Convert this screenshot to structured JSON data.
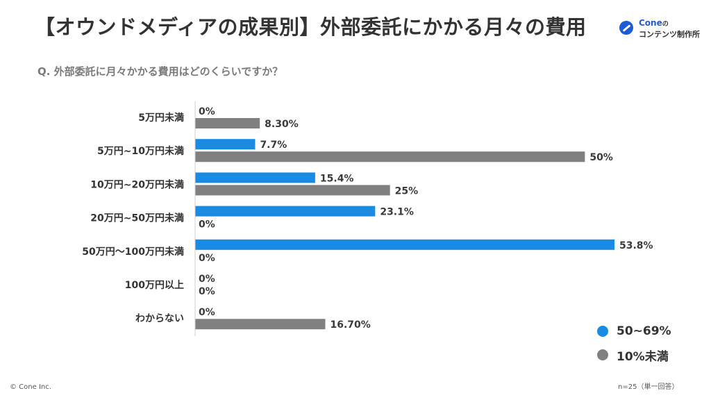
{
  "title": "【オウンドメディアの成果別】外部委託にかかる月々の費用",
  "logo": {
    "brand": "Cone",
    "particle": "の",
    "sub": "コンテンツ制作所"
  },
  "question": "Q. 外部委託に月々かかる費用はどのくらいですか？",
  "footer": {
    "copyright": "© Cone Inc.",
    "note": "n=25（単一回答）"
  },
  "chart_data": {
    "type": "bar",
    "orientation": "horizontal",
    "categories": [
      "5万円未満",
      "5万円~10万円未満",
      "10万円~20万円未満",
      "20万円~50万円未満",
      "50万円〜100万円未満",
      "100万円以上",
      "わからない"
    ],
    "series": [
      {
        "name": "50~69%",
        "color": "#1a8be3",
        "values": [
          0,
          7.7,
          15.4,
          23.1,
          53.8,
          0,
          0
        ],
        "labels": [
          "0%",
          "7.7%",
          "15.4%",
          "23.1%",
          "53.8%",
          "0%",
          "0%"
        ]
      },
      {
        "name": "10%未満",
        "color": "#808080",
        "values": [
          8.3,
          50,
          25,
          0,
          0,
          0,
          16.7
        ],
        "labels": [
          "8.30%",
          "50%",
          "25%",
          "0%",
          "0%",
          "0%",
          "16.70%"
        ]
      }
    ],
    "xlim": [
      0,
      53.8
    ],
    "legend": "bottom-right",
    "grid": false
  }
}
